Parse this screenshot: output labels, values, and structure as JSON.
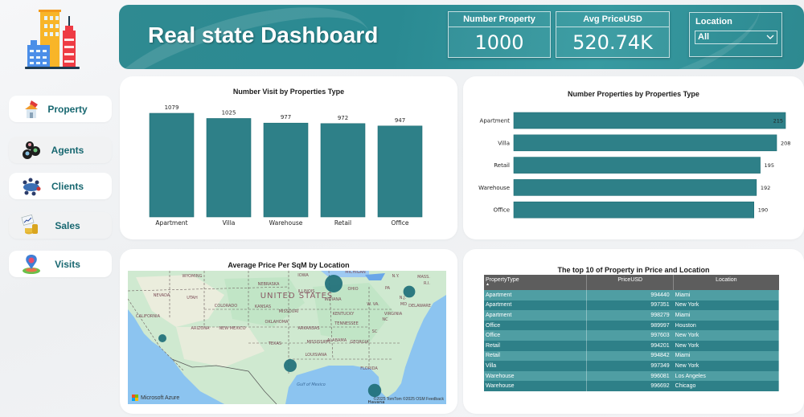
{
  "header": {
    "title": "Real state Dashboard",
    "kpis": [
      {
        "label": "Number Property",
        "value": "1000"
      },
      {
        "label": "Avg PriceUSD",
        "value": "520.74K"
      }
    ],
    "slicer": {
      "label": "Location",
      "selected": "All"
    }
  },
  "logo": {
    "icon": "city-buildings-icon"
  },
  "sidebar": {
    "items": [
      {
        "label": "Property",
        "icon": "house-key-icon"
      },
      {
        "label": "Agents",
        "icon": "people-group-icon"
      },
      {
        "label": "Clients",
        "icon": "meeting-table-icon"
      },
      {
        "label": "Sales",
        "icon": "sales-chart-coins-icon"
      },
      {
        "label": "Visits",
        "icon": "map-pin-icon"
      }
    ]
  },
  "colors": {
    "accent": "#2e8088",
    "bar": "#2e8088",
    "header_bg": "#2f8a91",
    "nav_text": "#176770",
    "table_header": "#5d5d5d"
  },
  "chart_data": [
    {
      "type": "bar",
      "title": "Number Visit by Properties Type",
      "categories": [
        "Apartment",
        "Villa",
        "Warehouse",
        "Retail",
        "Office"
      ],
      "values": [
        1079,
        1025,
        977,
        972,
        947
      ],
      "xlabel": "",
      "ylabel": "",
      "ylim": [
        0,
        1079
      ],
      "data_labels": [
        "1079",
        "1025",
        "977",
        "972",
        "947"
      ],
      "grid": false
    },
    {
      "type": "bar",
      "orientation": "horizontal",
      "title": "Number Properties by Properties Type",
      "categories": [
        "Apartment",
        "Villa",
        "Retail",
        "Warehouse",
        "Office"
      ],
      "values": [
        215,
        208,
        195,
        192,
        190
      ],
      "xlabel": "",
      "ylabel": "",
      "xlim": [
        0,
        215
      ],
      "data_labels": [
        "215",
        "208",
        "195",
        "192",
        "190"
      ],
      "grid": false
    },
    {
      "type": "scatter",
      "subtype": "bubble-map",
      "title": "Average Price Per SqM by Location",
      "points": [
        {
          "location": "Chicago",
          "relative_size": 1.0
        },
        {
          "location": "New York",
          "relative_size": 0.55
        },
        {
          "location": "Houston",
          "relative_size": 0.62
        },
        {
          "location": "Miami",
          "relative_size": 0.65
        },
        {
          "location": "Los Angeles",
          "relative_size": 0.25
        }
      ]
    },
    {
      "type": "table",
      "title": "The top 10 of Property in Price and Location",
      "columns": [
        "PropertyType",
        "PriceUSD",
        "Location"
      ],
      "rows": [
        [
          "Apartment",
          "994440",
          "Miami"
        ],
        [
          "Apartment",
          "997351",
          "New York"
        ],
        [
          "Apartment",
          "998279",
          "Miami"
        ],
        [
          "Office",
          "989997",
          "Houston"
        ],
        [
          "Office",
          "997603",
          "New York"
        ],
        [
          "Retail",
          "994201",
          "New York"
        ],
        [
          "Retail",
          "994842",
          "Miami"
        ],
        [
          "Villa",
          "997349",
          "New York"
        ],
        [
          "Warehouse",
          "996081",
          "Los Angeles"
        ],
        [
          "Warehouse",
          "996692",
          "Chicago"
        ]
      ]
    }
  ],
  "map": {
    "country_label": "UNITED STATES",
    "state_labels": [
      "WYOMING",
      "NEBRASKA",
      "IOWA",
      "MICHIGAN",
      "ILLINOIS",
      "OHIO",
      "PA",
      "N.Y.",
      "MASS.",
      "R.I.",
      "N.J.",
      "MD",
      "DELAWARE",
      "W. VA.",
      "VIRGINIA",
      "INDIANA",
      "KENTUCKY",
      "MISSOURI",
      "KANSAS",
      "COLORADO",
      "UTAH",
      "NEVADA",
      "CALIFORNIA",
      "ARIZONA",
      "NEW MEXICO",
      "OKLAHOMA",
      "ARKANSAS",
      "TENNESSEE",
      "NC",
      "SC",
      "ALABAMA",
      "GEORGIA",
      "MISSISSIPPI",
      "LOUISIANA",
      "TEXAS",
      "FLORIDA"
    ],
    "sea_label": "Gulf of Mexico",
    "city_label": "Havana",
    "provider": "Microsoft Azure",
    "attribution": "©2025 TomTom ©2025 OSM Feedback"
  }
}
